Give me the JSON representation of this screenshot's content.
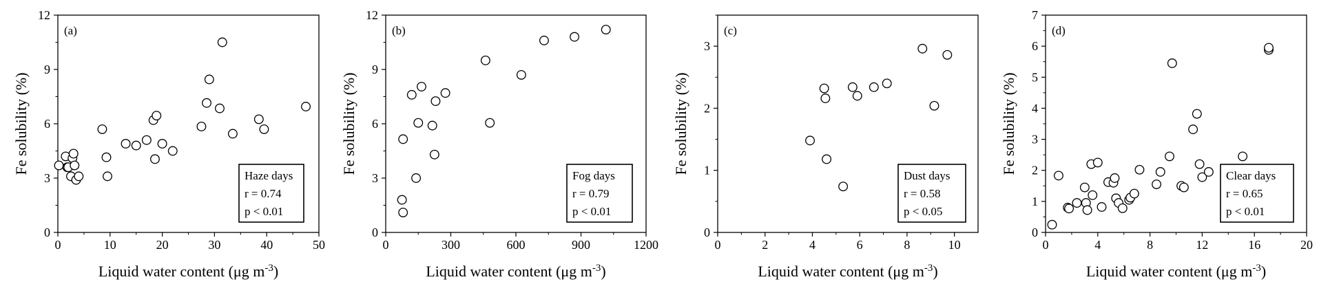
{
  "chart_data": [
    {
      "type": "scatter",
      "panel_label": "(a)",
      "xlabel": "Liquid water content (μg m",
      "xlabel_sup": "-3",
      "xlabel_end": ")",
      "ylabel": "Fe solubility (%)",
      "xlim": [
        0,
        50
      ],
      "ylim": [
        0,
        12
      ],
      "xticks": [
        0,
        10,
        20,
        30,
        40,
        50
      ],
      "yticks": [
        0,
        3,
        6,
        9,
        12
      ],
      "x_tick_labels": [
        "0",
        "10",
        "20",
        "30",
        "40",
        "50"
      ],
      "y_tick_labels": [
        "0",
        "3",
        "6",
        "9",
        "12"
      ],
      "stats": [
        "Haze days",
        "r = 0.74",
        "p < 0.01"
      ],
      "x": [
        0.2,
        1.5,
        1.8,
        2.0,
        2.5,
        2.8,
        3.0,
        3.2,
        3.5,
        4.0,
        8.5,
        9.3,
        9.5,
        13.0,
        15.0,
        17.0,
        18.3,
        18.6,
        18.9,
        20.0,
        22.0,
        27.5,
        28.5,
        29.0,
        31.0,
        31.5,
        33.5,
        38.5,
        39.5,
        47.5
      ],
      "y": [
        3.7,
        4.2,
        3.6,
        3.6,
        3.1,
        4.1,
        4.35,
        3.7,
        2.9,
        3.1,
        5.7,
        4.15,
        3.1,
        4.9,
        4.8,
        5.1,
        6.2,
        4.05,
        6.45,
        4.9,
        4.5,
        5.85,
        7.15,
        8.45,
        6.85,
        10.5,
        5.45,
        6.25,
        5.7,
        6.95
      ]
    },
    {
      "type": "scatter",
      "panel_label": "(b)",
      "xlabel": "Liquid water content (μg m",
      "xlabel_sup": "-3",
      "xlabel_end": ")",
      "ylabel": "Fe solubility (%)",
      "xlim": [
        0,
        1200
      ],
      "ylim": [
        0,
        12
      ],
      "xticks": [
        0,
        300,
        600,
        900,
        1200
      ],
      "yticks": [
        0,
        3,
        6,
        9,
        12
      ],
      "x_tick_labels": [
        "0",
        "300",
        "600",
        "900",
        "1200"
      ],
      "y_tick_labels": [
        "0",
        "3",
        "6",
        "9",
        "12"
      ],
      "stats": [
        "Fog days",
        "r = 0.79",
        "p < 0.01"
      ],
      "x": [
        75,
        80,
        80,
        120,
        140,
        150,
        165,
        215,
        225,
        230,
        275,
        460,
        480,
        625,
        730,
        870,
        1015
      ],
      "y": [
        1.8,
        1.1,
        5.15,
        7.6,
        3.0,
        6.05,
        8.05,
        5.9,
        4.3,
        7.25,
        7.7,
        9.5,
        6.05,
        8.7,
        10.6,
        10.8,
        11.2
      ]
    },
    {
      "type": "scatter",
      "panel_label": "(c)",
      "xlabel": "Liquid water content (μg m",
      "xlabel_sup": "-3",
      "xlabel_end": ")",
      "ylabel": "Fe solubility (%)",
      "xlim": [
        0,
        11
      ],
      "ylim": [
        0,
        3.5
      ],
      "xticks": [
        0,
        2,
        4,
        6,
        8,
        10
      ],
      "yticks": [
        0,
        1,
        2,
        3
      ],
      "x_tick_labels": [
        "0",
        "2",
        "4",
        "6",
        "8",
        "10"
      ],
      "y_tick_labels": [
        "0",
        "1",
        "2",
        "3"
      ],
      "stats": [
        "Dust days",
        "r = 0.58",
        "p < 0.05"
      ],
      "x": [
        3.9,
        4.5,
        4.55,
        4.6,
        5.3,
        5.7,
        5.9,
        6.6,
        7.15,
        8.65,
        9.15,
        9.7
      ],
      "y": [
        1.48,
        2.32,
        2.16,
        1.18,
        0.74,
        2.34,
        2.2,
        2.34,
        2.4,
        2.96,
        2.04,
        2.86
      ]
    },
    {
      "type": "scatter",
      "panel_label": "(d)",
      "xlabel": "Liquid water content (μg m",
      "xlabel_sup": "-3",
      "xlabel_end": ")",
      "ylabel": "Fe solubility (%)",
      "xlim": [
        0,
        20
      ],
      "ylim": [
        0,
        7
      ],
      "xticks": [
        0,
        4,
        8,
        12,
        16,
        20
      ],
      "yticks": [
        0,
        1,
        2,
        3,
        4,
        5,
        6,
        7
      ],
      "x_tick_labels": [
        "0",
        "4",
        "8",
        "12",
        "16",
        "20"
      ],
      "y_tick_labels": [
        "0",
        "1",
        "2",
        "3",
        "4",
        "5",
        "6",
        "7"
      ],
      "stats": [
        "Clear days",
        "r = 0.65",
        "p < 0.01"
      ],
      "x": [
        0.5,
        1.0,
        1.7,
        1.8,
        2.4,
        3.0,
        3.1,
        3.2,
        3.5,
        3.6,
        4.0,
        4.3,
        4.8,
        5.2,
        5.3,
        5.4,
        5.6,
        5.9,
        6.4,
        6.5,
        6.8,
        7.2,
        8.5,
        8.8,
        9.5,
        9.7,
        10.4,
        10.6,
        11.3,
        11.6,
        11.8,
        12.0,
        12.5,
        13.9,
        15.1,
        17.1,
        17.1
      ],
      "y": [
        0.25,
        1.83,
        0.8,
        0.77,
        0.95,
        1.45,
        0.95,
        0.72,
        2.2,
        1.2,
        2.25,
        0.82,
        1.62,
        1.6,
        1.75,
        1.1,
        0.95,
        0.78,
        1.05,
        1.12,
        1.25,
        2.02,
        1.55,
        1.95,
        2.45,
        5.45,
        1.5,
        1.45,
        3.32,
        3.82,
        2.2,
        1.78,
        1.95,
        1.85,
        2.45,
        5.88,
        5.95
      ]
    }
  ]
}
